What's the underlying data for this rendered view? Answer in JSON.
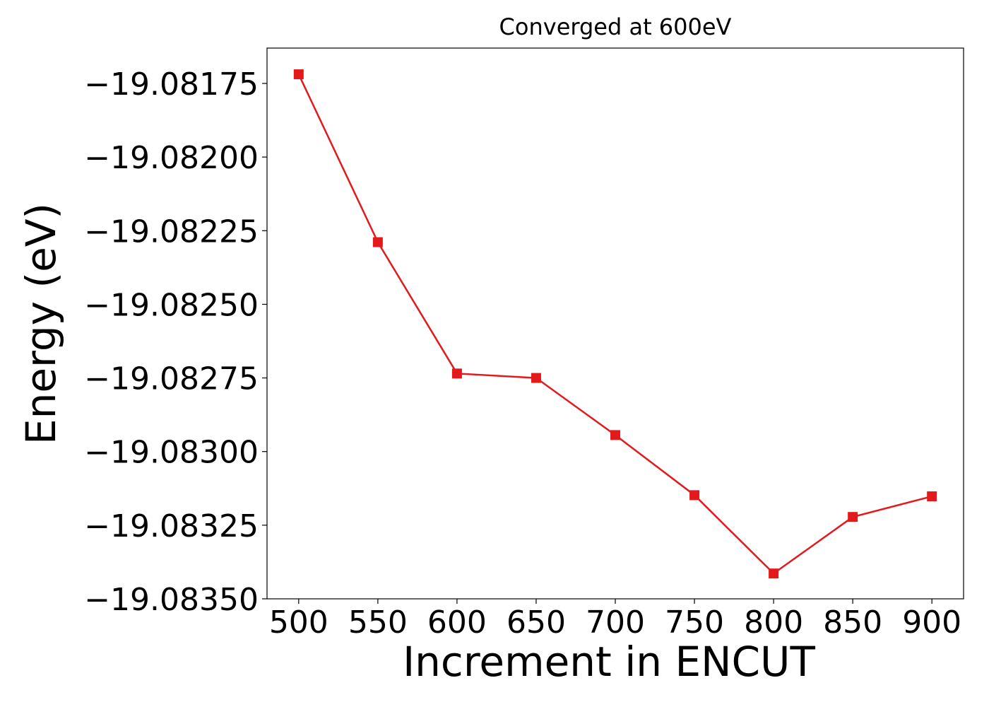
{
  "chart_data": {
    "type": "line",
    "title": "Converged at 600eV",
    "xlabel": "Increment in ENCUT",
    "ylabel": "Energy (eV)",
    "x": [
      500,
      550,
      600,
      650,
      700,
      750,
      800,
      850,
      900
    ],
    "series": [
      {
        "name": "Energy",
        "color": "#e31a1c",
        "marker": "square",
        "values": [
          -19.081719,
          -19.082289,
          -19.082735,
          -19.08275,
          -19.082944,
          -19.083148,
          -19.083414,
          -19.083222,
          -19.083152
        ]
      }
    ],
    "xlim": [
      480,
      920
    ],
    "ylim": [
      -19.0835,
      -19.08163
    ],
    "xticks": [
      500,
      550,
      600,
      650,
      700,
      750,
      800,
      850,
      900
    ],
    "yticks": [
      {
        "value": -19.0835,
        "label": "−19.08350"
      },
      {
        "value": -19.08325,
        "label": "−19.08325"
      },
      {
        "value": -19.083,
        "label": "−19.08300"
      },
      {
        "value": -19.08275,
        "label": "−19.08275"
      },
      {
        "value": -19.0825,
        "label": "−19.08250"
      },
      {
        "value": -19.08225,
        "label": "−19.08225"
      },
      {
        "value": -19.082,
        "label": "−19.08200"
      },
      {
        "value": -19.08175,
        "label": "−19.08175"
      }
    ],
    "grid": false
  }
}
